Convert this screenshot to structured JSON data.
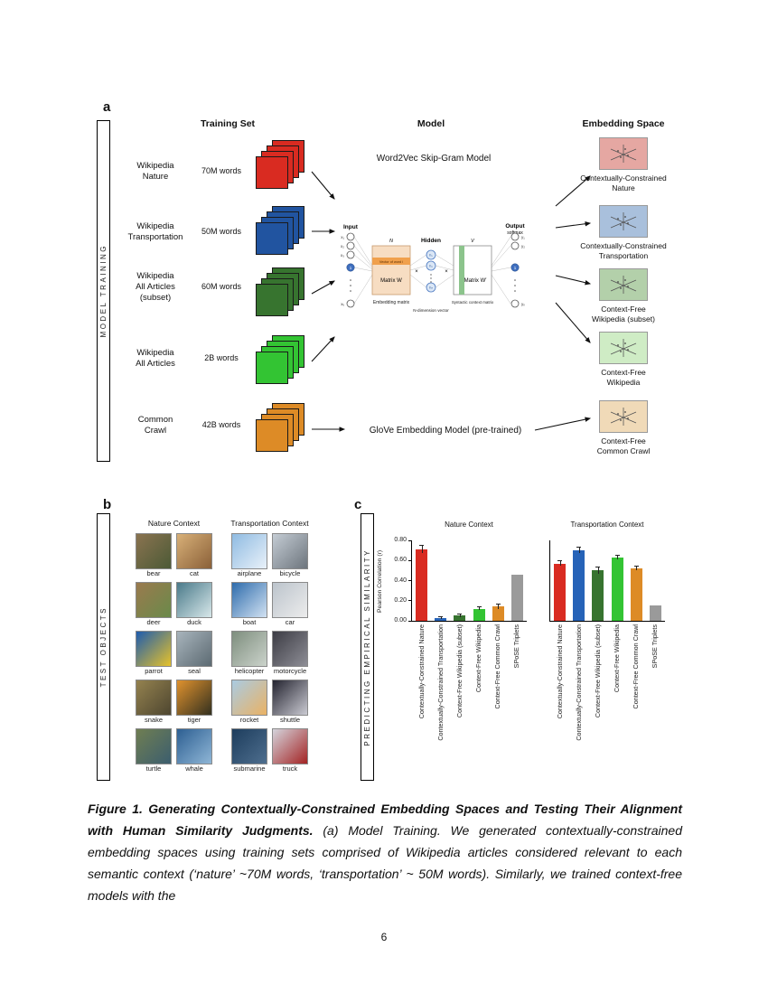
{
  "page_number": "6",
  "panel_a": {
    "label": "a",
    "sidebar": "MODEL TRAINING",
    "col_training_set": "Training Set",
    "col_model": "Model",
    "col_embedding": "Embedding Space",
    "word2vec_label": "Word2Vec Skip-Gram Model",
    "glove_label": "GloVe Embedding Model (pre-trained)",
    "rows": [
      {
        "name": "Wikipedia\nNature",
        "words": "70M words",
        "color": "#d92b21",
        "embed_label": "Contextually-Constrained\nNature",
        "embed_bg": "#e5a7a2"
      },
      {
        "name": "Wikipedia\nTransportation",
        "words": "50M words",
        "color": "#2154a0",
        "embed_label": "Contextually-Constrained\nTransportation",
        "embed_bg": "#a9c0dc"
      },
      {
        "name": "Wikipedia\nAll Articles\n(subset)",
        "words": "60M words",
        "color": "#37742f",
        "embed_label": "Context-Free\nWikipedia (subset)",
        "embed_bg": "#b3d0aa"
      },
      {
        "name": "Wikipedia\nAll Articles",
        "words": "2B words",
        "color": "#33c433",
        "embed_label": "Context-Free\nWikipedia",
        "embed_bg": "#cfecc5"
      },
      {
        "name": "Common\nCrawl",
        "words": "42B words",
        "color": "#dd8b26",
        "embed_label": "Context-Free\nCommon Crawl",
        "embed_bg": "#f0dab8"
      }
    ],
    "network": {
      "input": "Input",
      "hidden": "Hidden",
      "output": "Output",
      "softmax": "softmax",
      "matrix_w": "Matrix W",
      "matrix_w_prime": "Matrix W′",
      "n": "N",
      "v": "V",
      "times": "×",
      "one": "1",
      "vector_of_word": "Vector of word i",
      "embedding_matrix": "Embedding matrix",
      "n_dimension_vector": "N-dimension vector",
      "syntactic_context_matrix": "Syntactic context matrix",
      "x1": "x₁",
      "x2": "x₂",
      "x3": "x₃",
      "xv": "xᵥ",
      "h1": "h₁",
      "h2": "h₂",
      "hn": "hₙ",
      "y1": "y₁",
      "y2": "y₂",
      "yv": "yᵥ"
    }
  },
  "panel_b": {
    "label": "b",
    "sidebar": "TEST OBJECTS",
    "nature_header": "Nature Context",
    "transport_header": "Transportation Context",
    "nature_items": [
      {
        "label": "bear",
        "bg": "linear-gradient(135deg,#8a7350,#4c5a36)"
      },
      {
        "label": "cat",
        "bg": "linear-gradient(135deg,#d8b078,#8a6038)"
      },
      {
        "label": "deer",
        "bg": "linear-gradient(135deg,#9a7a4e,#6a8a4a)"
      },
      {
        "label": "duck",
        "bg": "linear-gradient(135deg,#4a7a8a,#d8e8ea)"
      },
      {
        "label": "parrot",
        "bg": "linear-gradient(135deg,#1e5cae,#e6c22a)"
      },
      {
        "label": "seal",
        "bg": "linear-gradient(135deg,#a8b4bc,#5c6a72)"
      },
      {
        "label": "snake",
        "bg": "linear-gradient(135deg,#94824f,#4e4630)"
      },
      {
        "label": "tiger",
        "bg": "linear-gradient(135deg,#e0922e,#33301f)"
      },
      {
        "label": "turtle",
        "bg": "linear-gradient(135deg,#6f7e52,#3c5e6e)"
      },
      {
        "label": "whale",
        "bg": "linear-gradient(135deg,#2d5f92,#8fb6d6)"
      }
    ],
    "transport_items": [
      {
        "label": "airplane",
        "bg": "linear-gradient(135deg,#8fbbe2,#e9f1f9)"
      },
      {
        "label": "bicycle",
        "bg": "linear-gradient(135deg,#c4ccd4,#6d757d)"
      },
      {
        "label": "boat",
        "bg": "linear-gradient(135deg,#2e6cac,#d2e2f2)"
      },
      {
        "label": "car",
        "bg": "linear-gradient(135deg,#bcc4cc,#ececec)"
      },
      {
        "label": "helicopter",
        "bg": "linear-gradient(135deg,#7e8e7e,#cbd3cb)"
      },
      {
        "label": "motorcycle",
        "bg": "linear-gradient(135deg,#3c3c44,#8e8e96)"
      },
      {
        "label": "rocket",
        "bg": "linear-gradient(135deg,#aacbe2,#eab264)"
      },
      {
        "label": "shuttle",
        "bg": "linear-gradient(135deg,#23232f,#cacad2)"
      },
      {
        "label": "submarine",
        "bg": "linear-gradient(135deg,#1d3d5d,#4e6e8e)"
      },
      {
        "label": "truck",
        "bg": "linear-gradient(135deg,#d4d4dc,#a42424)"
      }
    ]
  },
  "panel_c": {
    "label": "c",
    "sidebar": "PREDICTING EMPIRICAL SIMILARITY"
  },
  "chart_data": [
    {
      "type": "bar",
      "title": "Nature Context",
      "ylabel": "Pearson Correlation (r)",
      "ylim": [
        0,
        0.8
      ],
      "yticks": [
        "0.00",
        "0.20",
        "0.40",
        "0.60",
        "0.80"
      ],
      "categories": [
        "Contextually-Constrained Nature",
        "Contextually-Constrained Transportation",
        "Context-Free Wikipedia (subset)",
        "Context-Free Wikipedia",
        "Context-Free Common Crawl",
        "SPoSE Triplets"
      ],
      "values": [
        0.71,
        0.03,
        0.05,
        0.12,
        0.14,
        0.46
      ],
      "errors": [
        0.035,
        0.01,
        0.015,
        0.015,
        0.02,
        0
      ],
      "colors": [
        "#d92b21",
        "#2663b8",
        "#37742f",
        "#33c433",
        "#dd8b26",
        "#9a9a9a"
      ],
      "legend": "none",
      "grid": false
    },
    {
      "type": "bar",
      "title": "Transportation Context",
      "ylabel": "Pearson Correlation (r)",
      "ylim": [
        0,
        0.8
      ],
      "yticks": [
        "0.00",
        "0.20",
        "0.40",
        "0.60",
        "0.80"
      ],
      "categories": [
        "Contextually-Constrained Nature",
        "Contextually-Constrained Transportation",
        "Context-Free Wikipedia (subset)",
        "Context-Free Wikipedia",
        "Context-Free Common Crawl",
        "SPoSE Triplets"
      ],
      "values": [
        0.57,
        0.7,
        0.5,
        0.63,
        0.52,
        0.15
      ],
      "errors": [
        0.02,
        0.025,
        0.03,
        0.02,
        0.02,
        0
      ],
      "colors": [
        "#d92b21",
        "#2663b8",
        "#37742f",
        "#33c433",
        "#dd8b26",
        "#9a9a9a"
      ],
      "legend": "none",
      "grid": false
    }
  ],
  "caption": {
    "bold": "Figure 1. Generating Contextually-Constrained Embedding Spaces and Testing Their Alignment with Human Similarity Judgments.",
    "rest": " (a) Model Training. We generated contextually-constrained embedding spaces using training sets comprised of Wikipedia articles considered relevant to each semantic context (‘nature’ ~70M words, ‘transportation’ ~ 50M words). Similarly, we trained context-free models with the"
  }
}
